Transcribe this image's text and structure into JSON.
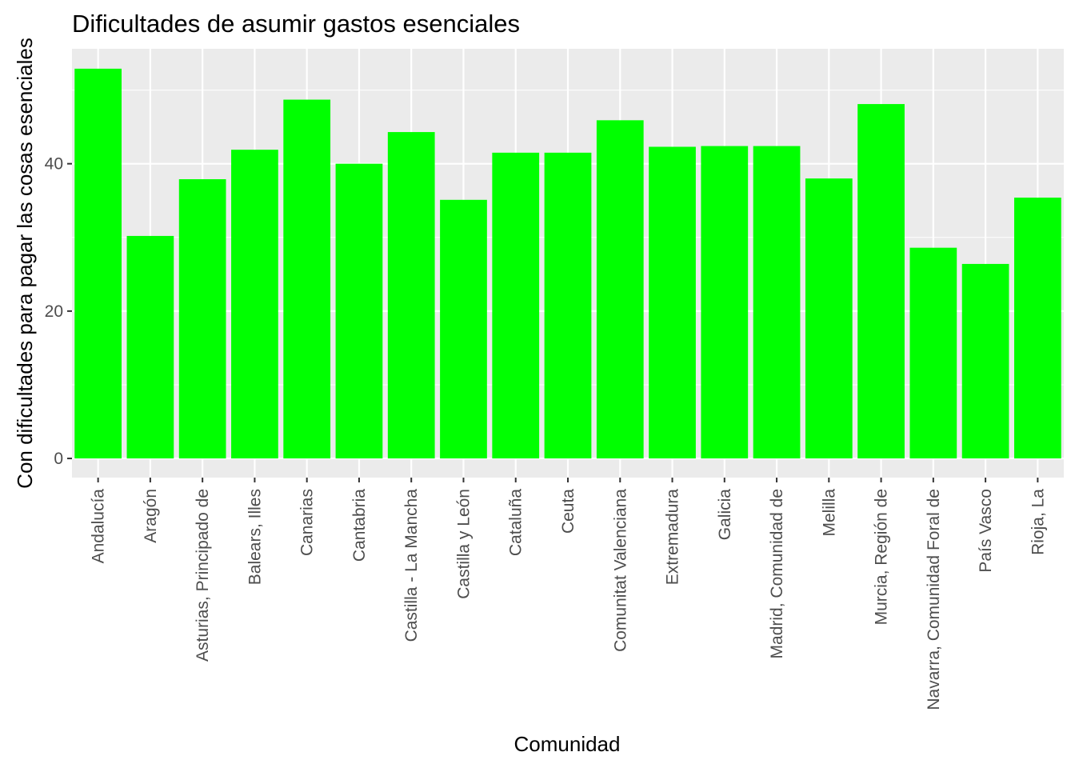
{
  "chart_data": {
    "type": "bar",
    "title": "Dificultades de asumir gastos esenciales",
    "xlabel": "Comunidad",
    "ylabel": "Con dificultades para pagar las cosas esenciales",
    "categories": [
      "Andalucía",
      "Aragón",
      "Asturias, Principado de",
      "Balears, Illes",
      "Canarias",
      "Cantabria",
      "Castilla - La Mancha",
      "Castilla y León",
      "Cataluña",
      "Ceuta",
      "Comunitat Valenciana",
      "Extremadura",
      "Galicia",
      "Madrid, Comunidad de",
      "Melilla",
      "Murcia, Región de",
      "Navarra, Comunidad Foral de",
      "País Vasco",
      "Rioja, La"
    ],
    "values": [
      52.9,
      30.2,
      37.9,
      41.9,
      48.7,
      40.0,
      44.3,
      35.1,
      41.5,
      41.5,
      45.9,
      42.3,
      42.4,
      42.4,
      38.0,
      48.1,
      28.6,
      26.4,
      35.4
    ],
    "yticks": [
      0,
      20,
      40
    ],
    "ylim": [
      -2.6,
      55.6
    ],
    "grid": true,
    "colors": {
      "bar": "#00ff00",
      "panel": "#ebebeb",
      "grid": "#ffffff",
      "tick_text": "#4d4d4d",
      "tick_mark": "#333333"
    }
  }
}
